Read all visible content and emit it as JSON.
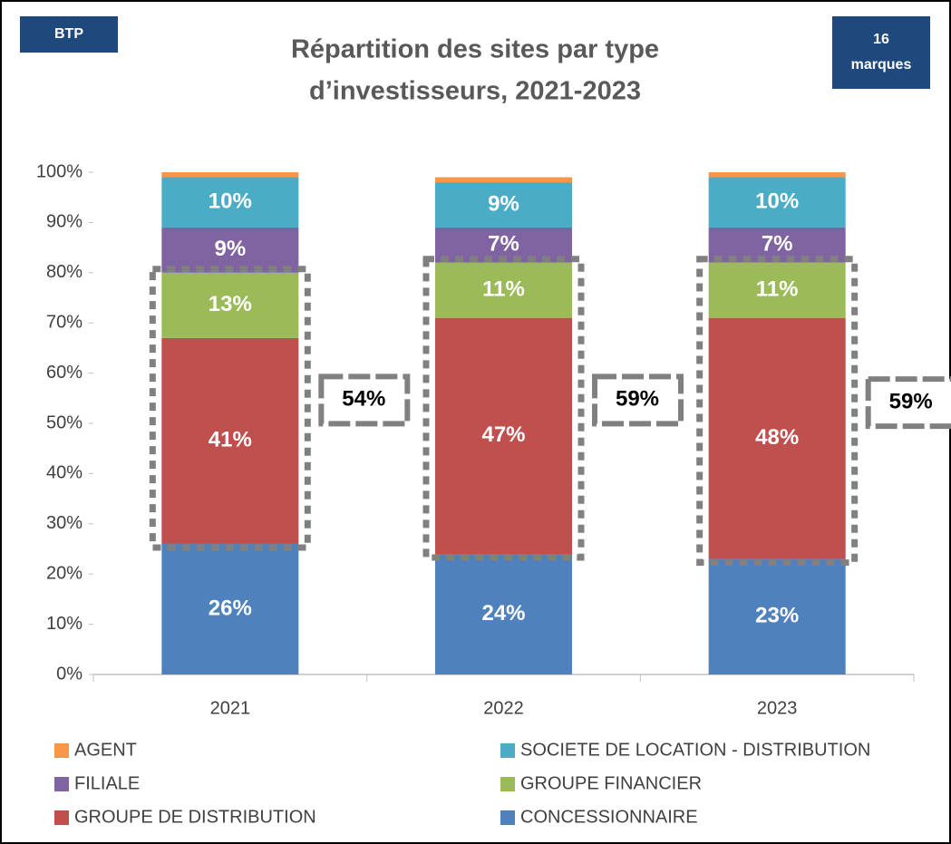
{
  "chart_data": {
    "type": "stacked_bar",
    "title": [
      "Répartition des sites par type",
      "d’investisseurs, 2021-2023"
    ],
    "badge_left": "BTP",
    "badge_right": [
      "16",
      "marques"
    ],
    "categories": [
      "2021",
      "2022",
      "2023"
    ],
    "series": [
      {
        "name": "CONCESSIONNAIRE",
        "color": "#4f81bd",
        "values": [
          26,
          24,
          23
        ],
        "value_labels": [
          "26%",
          "24%",
          "23%"
        ]
      },
      {
        "name": "GROUPE DE DISTRIBUTION",
        "color": "#c0504d",
        "values": [
          41,
          47,
          48
        ],
        "value_labels": [
          "41%",
          "47%",
          "48%"
        ]
      },
      {
        "name": "GROUPE FINANCIER",
        "color": "#9bbb59",
        "values": [
          13,
          11,
          11
        ],
        "value_labels": [
          "13%",
          "11%",
          "11%"
        ]
      },
      {
        "name": "FILIALE",
        "color": "#8064a2",
        "values": [
          9,
          7,
          7
        ],
        "value_labels": [
          "9%",
          "7%",
          "7%"
        ]
      },
      {
        "name": "SOCIETE DE LOCATION - DISTRIBUTION",
        "color": "#4bacc6",
        "values": [
          10,
          9,
          10
        ],
        "value_labels": [
          "10%",
          "9%",
          "10%"
        ]
      },
      {
        "name": "AGENT",
        "color": "#f79646",
        "values": [
          1,
          1,
          1
        ]
      }
    ],
    "annotations": [
      "54%",
      "59%",
      "59%"
    ],
    "ylim": [
      0,
      100
    ],
    "yticks": [
      {
        "value": 0,
        "label": "0%"
      },
      {
        "value": 10,
        "label": "10%"
      },
      {
        "value": 20,
        "label": "20%"
      },
      {
        "value": 30,
        "label": "30%"
      },
      {
        "value": 40,
        "label": "40%"
      },
      {
        "value": 50,
        "label": "50%"
      },
      {
        "value": 60,
        "label": "60%"
      },
      {
        "value": 70,
        "label": "70%"
      },
      {
        "value": 80,
        "label": "80%"
      },
      {
        "value": 90,
        "label": "90%"
      },
      {
        "value": 100,
        "label": "100%"
      }
    ]
  }
}
